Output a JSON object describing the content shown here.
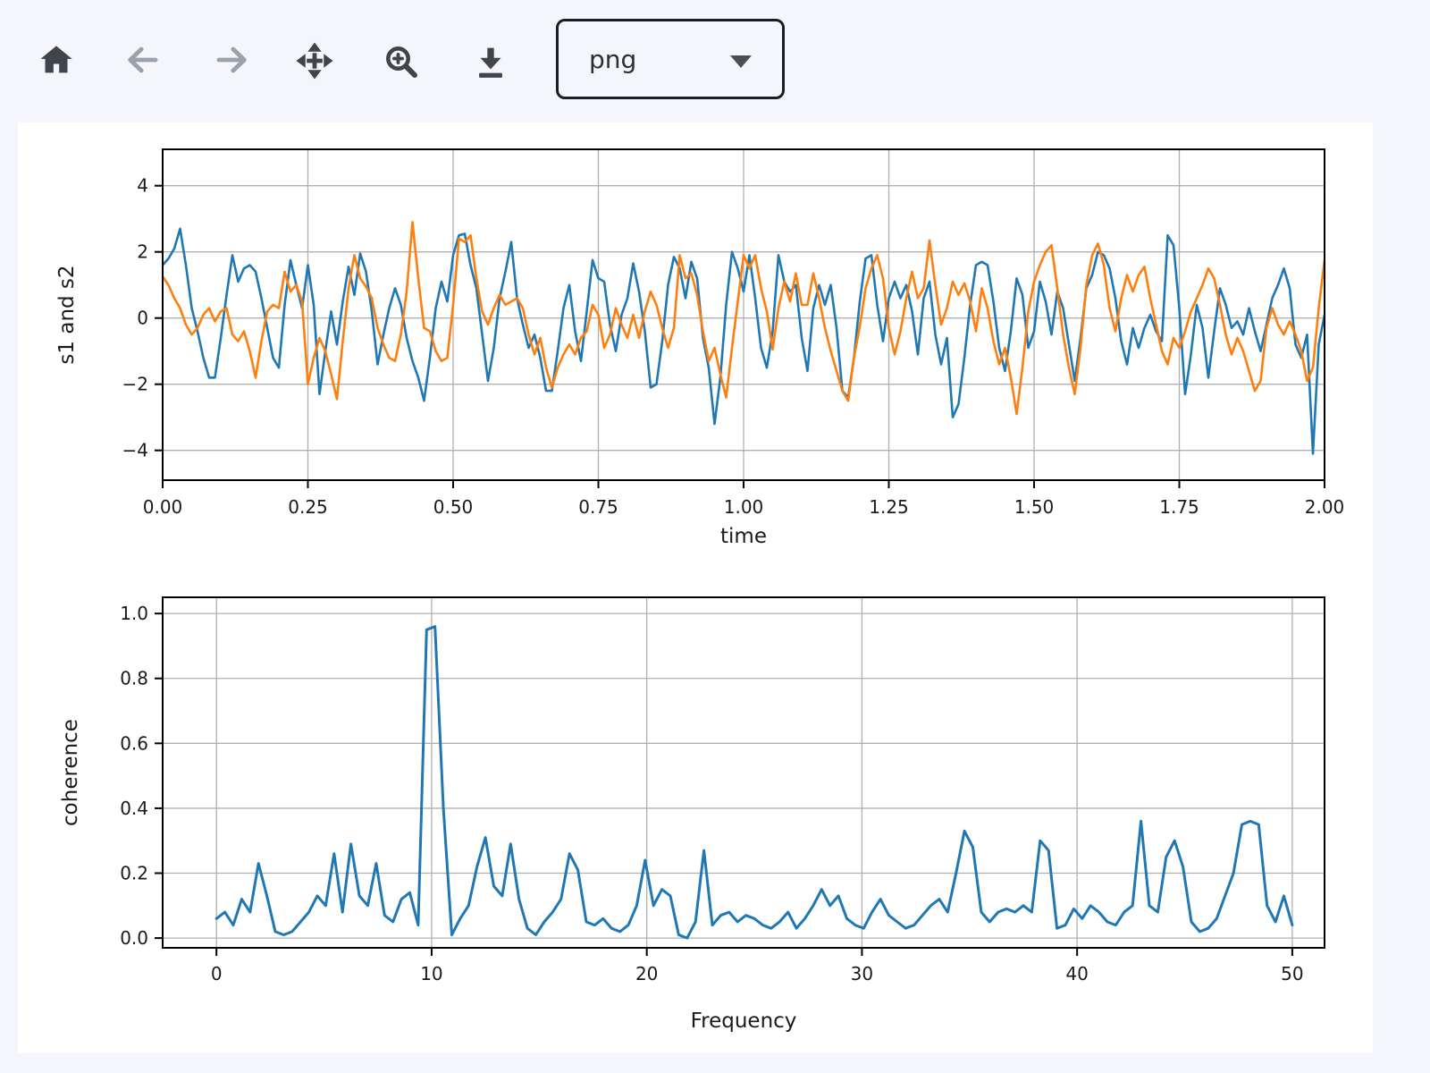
{
  "toolbar": {
    "format_select": {
      "value": "png"
    },
    "buttons": [
      {
        "id": "home",
        "icon": "home-icon",
        "enabled": true
      },
      {
        "id": "back",
        "icon": "arrow-left-icon",
        "enabled": false
      },
      {
        "id": "forward",
        "icon": "arrow-right-icon",
        "enabled": false
      },
      {
        "id": "pan",
        "icon": "pan-arrows-icon",
        "enabled": true
      },
      {
        "id": "zoom",
        "icon": "zoom-in-icon",
        "enabled": true
      },
      {
        "id": "download",
        "icon": "download-icon",
        "enabled": true
      }
    ]
  },
  "colors": {
    "s1": "#1f77b4",
    "s2": "#ff7f0e",
    "coherence": "#1f77b4",
    "grid": "#b0b0b0",
    "spine": "#000000",
    "tick_text": "#1a1a1a",
    "icon": "#3f454c",
    "icon_disabled": "#9aa2ac",
    "page_bg": "#f4f6fb",
    "figure_bg": "#ffffff"
  },
  "chart_data": [
    {
      "type": "line",
      "title": "",
      "xlabel": "time",
      "ylabel": "s1 and s2",
      "xlim": [
        0,
        2
      ],
      "ylim": [
        -4.9,
        5.1
      ],
      "grid": true,
      "legend": "none",
      "xtick_vals": [
        0,
        0.25,
        0.5,
        0.75,
        1.0,
        1.25,
        1.5,
        1.75,
        2.0
      ],
      "xtick_labels": [
        "0.00",
        "0.25",
        "0.50",
        "0.75",
        "1.00",
        "1.25",
        "1.50",
        "1.75",
        "2.00"
      ],
      "ytick_vals": [
        -4,
        -2,
        0,
        2,
        4
      ],
      "ytick_labels": [
        "−4",
        "−2",
        "0",
        "2",
        "4"
      ],
      "x_start": 0,
      "x_step": 0.01,
      "series": [
        {
          "name": "s1",
          "color": "#1f77b4",
          "values": [
            1.6,
            1.8,
            2.1,
            2.7,
            1.6,
            0.3,
            -0.4,
            -1.2,
            -1.8,
            -1.8,
            -0.6,
            0.7,
            1.9,
            1.1,
            1.5,
            1.6,
            1.4,
            0.6,
            -0.3,
            -1.2,
            -1.5,
            0.4,
            1.75,
            1.0,
            0.3,
            1.6,
            0.4,
            -2.3,
            -1.0,
            0.2,
            -0.8,
            0.5,
            1.55,
            0.7,
            1.95,
            1.4,
            0.2,
            -1.4,
            -0.5,
            0.3,
            0.9,
            0.4,
            -0.6,
            -1.3,
            -1.8,
            -2.5,
            -1.2,
            0.3,
            1.1,
            0.5,
            1.9,
            2.5,
            2.55,
            1.6,
            0.9,
            -0.5,
            -1.9,
            -0.9,
            0.6,
            1.4,
            2.3,
            0.6,
            -0.2,
            -0.9,
            -0.5,
            -1.2,
            -2.2,
            -2.2,
            -1.0,
            0.3,
            1.0,
            -0.4,
            -1.3,
            0.2,
            1.75,
            1.2,
            1.1,
            -0.2,
            -1.0,
            0.1,
            0.6,
            1.65,
            0.8,
            -0.4,
            -2.1,
            -2.0,
            -0.7,
            1.0,
            1.85,
            1.5,
            0.6,
            1.7,
            1.2,
            -0.6,
            -1.5,
            -3.2,
            -1.8,
            0.4,
            2.0,
            1.5,
            0.8,
            1.9,
            0.6,
            -0.9,
            -1.5,
            -0.4,
            1.9,
            1.1,
            0.8,
            1.0,
            -0.6,
            -1.6,
            0.3,
            1.0,
            0.4,
            1.0,
            -0.3,
            -2.2,
            -2.4,
            -1.2,
            0.5,
            1.8,
            1.9,
            0.4,
            -0.7,
            0.6,
            1.1,
            0.6,
            1.0,
            0.2,
            -1.1,
            0.6,
            1.1,
            -0.5,
            -1.4,
            -0.6,
            -3.0,
            -2.6,
            -1.2,
            0.4,
            1.6,
            1.7,
            1.6,
            0.5,
            -0.9,
            -1.6,
            -0.4,
            1.2,
            0.7,
            -0.9,
            -0.4,
            1.1,
            0.5,
            -0.5,
            0.8,
            0.3,
            -0.8,
            -1.9,
            -0.6,
            0.9,
            1.3,
            2.0,
            1.9,
            1.5,
            0.6,
            -0.7,
            -1.4,
            -0.3,
            -0.9,
            -0.3,
            0.1,
            -0.4,
            -0.7,
            2.5,
            2.2,
            0.3,
            -2.3,
            -1.1,
            0.4,
            -0.3,
            -1.8,
            -0.4,
            0.9,
            0.4,
            -0.3,
            -0.1,
            -0.5,
            0.3,
            -0.4,
            -1.0,
            -0.2,
            0.6,
            1.0,
            1.5,
            0.9,
            -0.8,
            -1.2,
            -0.5,
            -4.1,
            -0.8,
            0.1
          ]
        },
        {
          "name": "s2",
          "color": "#ff7f0e",
          "values": [
            1.25,
            1.0,
            0.6,
            0.3,
            -0.2,
            -0.5,
            -0.3,
            0.1,
            0.3,
            -0.1,
            0.2,
            0.3,
            -0.5,
            -0.7,
            -0.4,
            -1.0,
            -1.8,
            -0.7,
            0.2,
            0.4,
            0.3,
            1.4,
            0.8,
            1.0,
            0.5,
            -2.0,
            -1.2,
            -0.6,
            -1.0,
            -1.7,
            -2.45,
            -0.7,
            0.9,
            1.9,
            1.2,
            0.95,
            0.6,
            -0.3,
            -0.8,
            -1.2,
            -1.3,
            -0.5,
            0.8,
            2.9,
            1.2,
            -0.3,
            -0.4,
            -1.0,
            -1.3,
            -1.2,
            0.4,
            2.4,
            2.3,
            2.5,
            1.2,
            0.2,
            -0.2,
            0.3,
            0.7,
            0.4,
            0.5,
            0.6,
            0.3,
            -0.5,
            -1.1,
            -0.6,
            -1.5,
            -2.1,
            -1.5,
            -1.1,
            -0.8,
            -1.1,
            -0.6,
            -0.4,
            0.4,
            0.1,
            -0.9,
            -0.5,
            0.3,
            -0.2,
            -0.6,
            0.1,
            -0.6,
            0.2,
            0.8,
            0.4,
            -0.3,
            -0.9,
            -0.3,
            1.9,
            1.2,
            1.35,
            0.7,
            -0.4,
            -1.3,
            -0.9,
            -1.7,
            -2.4,
            -0.9,
            0.5,
            1.9,
            1.5,
            1.9,
            0.9,
            0.2,
            -0.95,
            0.3,
            1.1,
            0.5,
            1.35,
            0.4,
            0.4,
            1.35,
            0.6,
            -0.3,
            -1.0,
            -1.6,
            -2.2,
            -2.5,
            -1.2,
            -0.25,
            0.9,
            1.5,
            1.9,
            1.2,
            -0.3,
            -1.1,
            -0.4,
            0.6,
            1.4,
            0.6,
            0.9,
            2.35,
            1.0,
            -0.2,
            0.3,
            1.1,
            0.7,
            1.05,
            0.5,
            -0.4,
            0.9,
            0.3,
            -0.7,
            -1.4,
            -0.9,
            -1.8,
            -2.9,
            -1.5,
            0.2,
            1.1,
            1.6,
            2.0,
            2.2,
            0.9,
            -0.5,
            -1.5,
            -2.3,
            -0.9,
            1.0,
            1.9,
            2.25,
            1.6,
            0.3,
            -0.4,
            0.6,
            1.3,
            0.8,
            1.3,
            1.55,
            0.6,
            -0.2,
            -1.0,
            -1.4,
            -0.6,
            -0.9,
            -0.4,
            0.2,
            0.6,
            1.0,
            1.5,
            1.2,
            0.4,
            -0.5,
            -1.1,
            -0.6,
            -1.0,
            -1.6,
            -2.2,
            -1.9,
            -0.3,
            0.3,
            -0.2,
            -0.5,
            -0.1,
            -0.5,
            -1.0,
            -1.9,
            -1.5,
            0.3,
            1.75
          ]
        }
      ]
    },
    {
      "type": "line",
      "title": "",
      "xlabel": "Frequency",
      "ylabel": "coherence",
      "xlim": [
        -2.5,
        51.5
      ],
      "ylim": [
        -0.03,
        1.05
      ],
      "grid": true,
      "legend": "none",
      "xtick_vals": [
        0,
        10,
        20,
        30,
        40,
        50
      ],
      "xtick_labels": [
        "0",
        "10",
        "20",
        "30",
        "40",
        "50"
      ],
      "ytick_vals": [
        0.0,
        0.2,
        0.4,
        0.6,
        0.8,
        1.0
      ],
      "ytick_labels": [
        "0.0",
        "0.2",
        "0.4",
        "0.6",
        "0.8",
        "1.0"
      ],
      "x_start": 0,
      "x_step": 0.390625,
      "series": [
        {
          "name": "coherence",
          "color": "#1f77b4",
          "values": [
            0.06,
            0.08,
            0.04,
            0.12,
            0.08,
            0.23,
            0.13,
            0.02,
            0.01,
            0.02,
            0.05,
            0.08,
            0.13,
            0.1,
            0.26,
            0.08,
            0.29,
            0.13,
            0.1,
            0.23,
            0.07,
            0.05,
            0.12,
            0.14,
            0.04,
            0.95,
            0.96,
            0.4,
            0.01,
            0.06,
            0.1,
            0.22,
            0.31,
            0.16,
            0.13,
            0.29,
            0.12,
            0.03,
            0.01,
            0.05,
            0.08,
            0.12,
            0.26,
            0.21,
            0.05,
            0.04,
            0.06,
            0.03,
            0.02,
            0.04,
            0.1,
            0.24,
            0.1,
            0.15,
            0.13,
            0.01,
            0.0,
            0.05,
            0.27,
            0.04,
            0.07,
            0.08,
            0.05,
            0.07,
            0.06,
            0.04,
            0.03,
            0.05,
            0.08,
            0.03,
            0.06,
            0.1,
            0.15,
            0.1,
            0.13,
            0.06,
            0.04,
            0.03,
            0.08,
            0.12,
            0.07,
            0.05,
            0.03,
            0.04,
            0.07,
            0.1,
            0.12,
            0.08,
            0.2,
            0.33,
            0.28,
            0.08,
            0.05,
            0.08,
            0.09,
            0.08,
            0.1,
            0.08,
            0.3,
            0.27,
            0.03,
            0.04,
            0.09,
            0.06,
            0.1,
            0.08,
            0.05,
            0.04,
            0.08,
            0.1,
            0.36,
            0.1,
            0.08,
            0.25,
            0.3,
            0.22,
            0.05,
            0.02,
            0.03,
            0.06,
            0.13,
            0.2,
            0.35,
            0.36,
            0.35,
            0.1,
            0.05,
            0.13,
            0.04
          ]
        }
      ]
    }
  ]
}
